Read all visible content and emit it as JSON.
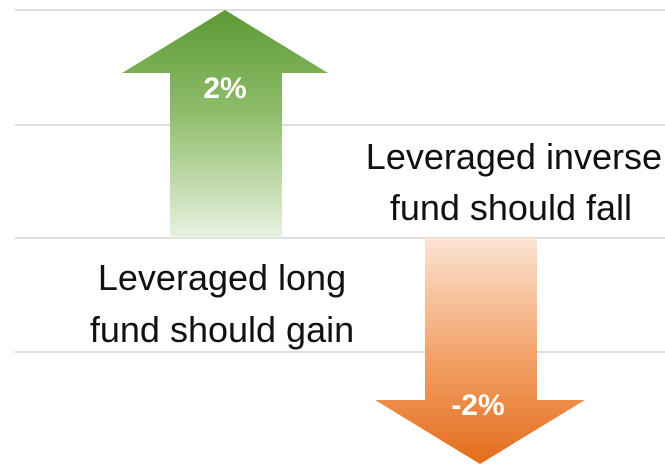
{
  "arrows": [
    {
      "direction": "up",
      "label": "2%"
    },
    {
      "direction": "down",
      "label": "-2%"
    }
  ],
  "annotations": [
    [
      "Leveraged inverse",
      "fund should fall"
    ],
    [
      "Leveraged long",
      "fund should gain"
    ]
  ]
}
